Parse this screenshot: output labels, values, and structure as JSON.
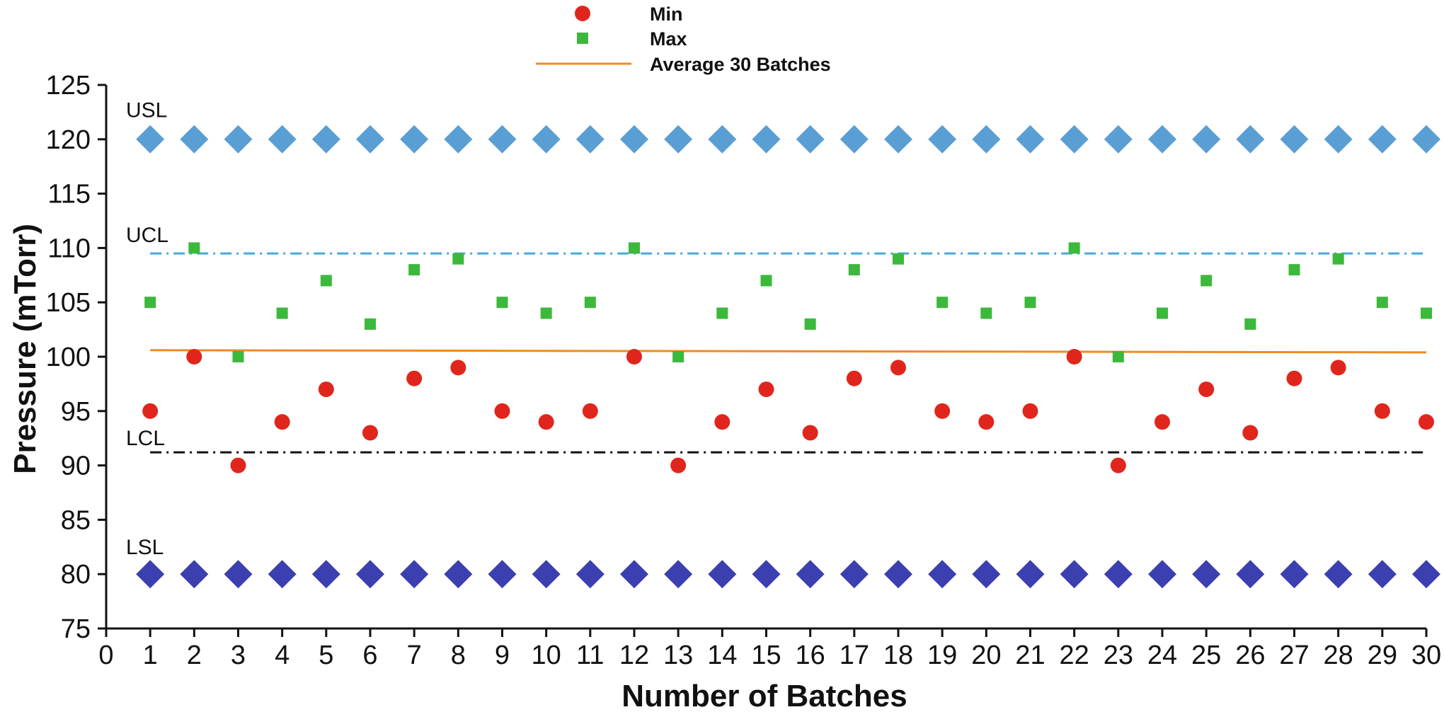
{
  "chart_data": {
    "type": "scatter",
    "title": "",
    "xlabel": "Number of Batches",
    "ylabel": "Pressure (mTorr)",
    "xlim": [
      0,
      30
    ],
    "ylim": [
      75,
      125
    ],
    "x_ticks": [
      0,
      1,
      2,
      3,
      4,
      5,
      6,
      7,
      8,
      9,
      10,
      11,
      12,
      13,
      14,
      15,
      16,
      17,
      18,
      19,
      20,
      21,
      22,
      23,
      24,
      25,
      26,
      27,
      28,
      29,
      30
    ],
    "y_ticks": [
      75,
      80,
      85,
      90,
      95,
      100,
      105,
      110,
      115,
      120,
      125
    ],
    "grid": false,
    "legend_position": "top-center",
    "x": [
      1,
      2,
      3,
      4,
      5,
      6,
      7,
      8,
      9,
      10,
      11,
      12,
      13,
      14,
      15,
      16,
      17,
      18,
      19,
      20,
      21,
      22,
      23,
      24,
      25,
      26,
      27,
      28,
      29,
      30
    ],
    "series": [
      {
        "name": "Min",
        "marker": "circle",
        "color": "#e0261c",
        "values": [
          95,
          100,
          90,
          94,
          97,
          93,
          98,
          99,
          95,
          94,
          95,
          100,
          90,
          94,
          97,
          93,
          98,
          99,
          95,
          94,
          95,
          100,
          90,
          94,
          97,
          93,
          98,
          99,
          95,
          94
        ]
      },
      {
        "name": "Max",
        "marker": "square",
        "color": "#3cb83c",
        "values": [
          105,
          110,
          100,
          104,
          107,
          103,
          108,
          109,
          105,
          104,
          105,
          110,
          100,
          104,
          107,
          103,
          108,
          109,
          105,
          104,
          105,
          110,
          100,
          104,
          107,
          103,
          108,
          109,
          105,
          104
        ]
      },
      {
        "name": "USL",
        "marker": "diamond",
        "color": "#5a9fd4",
        "values": [
          120,
          120,
          120,
          120,
          120,
          120,
          120,
          120,
          120,
          120,
          120,
          120,
          120,
          120,
          120,
          120,
          120,
          120,
          120,
          120,
          120,
          120,
          120,
          120,
          120,
          120,
          120,
          120,
          120,
          120
        ]
      },
      {
        "name": "LSL",
        "marker": "diamond",
        "color": "#3c3fb0",
        "values": [
          80,
          80,
          80,
          80,
          80,
          80,
          80,
          80,
          80,
          80,
          80,
          80,
          80,
          80,
          80,
          80,
          80,
          80,
          80,
          80,
          80,
          80,
          80,
          80,
          80,
          80,
          80,
          80,
          80,
          80
        ]
      }
    ],
    "reference_lines": [
      {
        "name": "Average 30 Batches",
        "style": "solid",
        "color": "#f08a24",
        "x_range": [
          1,
          30
        ],
        "y_start": 100.6,
        "y_end": 100.4
      },
      {
        "name": "UCL",
        "style": "dash-dot",
        "color": "#4aa8d8",
        "x_range": [
          1,
          30
        ],
        "y_start": 109.5,
        "y_end": 109.5
      },
      {
        "name": "LCL",
        "style": "dash-dot",
        "color": "#111111",
        "x_range": [
          1,
          30
        ],
        "y_start": 91.2,
        "y_end": 91.2
      }
    ],
    "annotations": [
      {
        "text": "USL",
        "x": 0.45,
        "y": 122.7
      },
      {
        "text": "UCL",
        "x": 0.45,
        "y": 111.2
      },
      {
        "text": "LCL",
        "x": 0.45,
        "y": 92.5
      },
      {
        "text": "LSL",
        "x": 0.45,
        "y": 82.5
      }
    ],
    "legend": [
      {
        "label": "Min",
        "marker": "circle",
        "color": "#e0261c"
      },
      {
        "label": "Max",
        "marker": "square",
        "color": "#3cb83c"
      },
      {
        "label": "Average 30 Batches",
        "marker": "line",
        "color": "#f08a24"
      }
    ]
  }
}
